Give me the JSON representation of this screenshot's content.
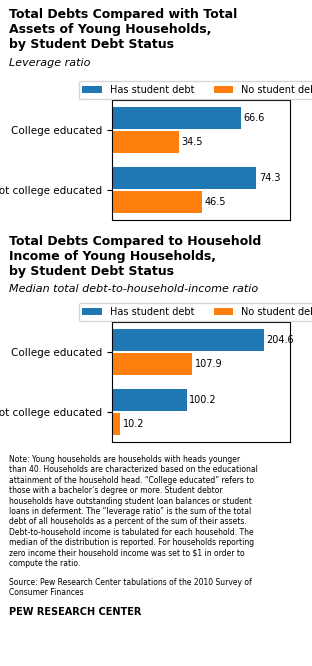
{
  "chart_data": [
    {
      "type": "bar",
      "orientation": "horizontal",
      "title": "Total Debts Compared with Total\nAssets of Young Households,\nby Student Debt Status",
      "subtitle": "Leverage ratio",
      "categories": [
        "College educated",
        "Not college educated"
      ],
      "series": [
        {
          "name": "Has student debt",
          "values": [
            66.6,
            74.3
          ]
        },
        {
          "name": "No student debt",
          "values": [
            34.5,
            46.5
          ]
        }
      ],
      "xlim": [
        0,
        92
      ],
      "data_labels": true,
      "tick_labels": "y",
      "legend": "upper center"
    },
    {
      "type": "bar",
      "orientation": "horizontal",
      "title": "Total Debts Compared to Household\nIncome of Young Households,\nby Student Debt Status",
      "subtitle": "Median total debt-to-household-income ratio",
      "categories": [
        "College educated",
        "Not college educated"
      ],
      "series": [
        {
          "name": "Has student debt",
          "values": [
            204.6,
            100.2
          ]
        },
        {
          "name": "No student debt",
          "values": [
            107.9,
            10.2
          ]
        }
      ],
      "xlim": [
        0,
        240
      ],
      "data_labels": true,
      "tick_labels": "y",
      "legend": "upper center",
      "annotations": [
        "Note: Young households are households with heads younger\nthan 40. Households are characterized based on the educational\nattainment of the household head. “College educated” refers to\nthose with a bachelor’s degree or more. Student debtor\nhouseholds have outstanding student loan balances or student\nloans in deferment. The “leverage ratio” is the sum of the total\ndebt of all households as a percent of the sum of their assets.\nDebt-to-household income is tabulated for each household. The\nmedian of the distribution is reported. For households reporting\nzero income their household income was set to $1 in order to\ncompute the ratio.",
        "Source: Pew Research Center tabulations of the 2010 Survey of\nConsumer Finances",
        "PEW RESEARCH CENTER"
      ]
    }
  ]
}
